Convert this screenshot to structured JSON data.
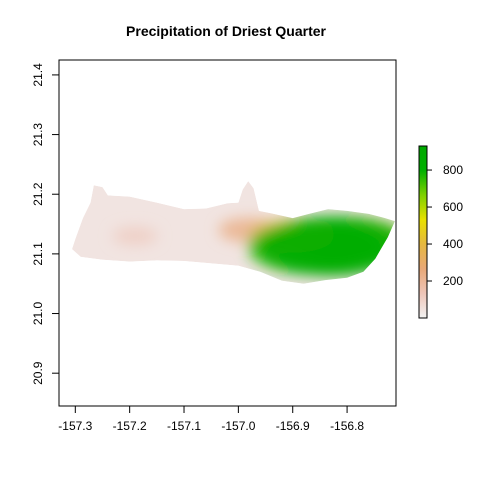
{
  "chart_data": {
    "type": "heatmap",
    "title": "Precipitation of Driest Quarter",
    "xlabel": "",
    "ylabel": "",
    "xlim": [
      -157.33,
      -156.71
    ],
    "ylim": [
      20.845,
      21.425
    ],
    "x_ticks": [
      -157.3,
      -157.2,
      -157.1,
      -157.0,
      -156.9,
      -156.8
    ],
    "x_tick_labels": [
      "-157.3",
      "-157.2",
      "-157.1",
      "-157.0",
      "-156.9",
      "-156.8"
    ],
    "y_ticks": [
      20.9,
      21.0,
      21.1,
      21.2,
      21.3,
      21.4
    ],
    "y_tick_labels": [
      "20.9",
      "21.0",
      "21.1",
      "21.2",
      "21.3",
      "21.4"
    ],
    "grid": false,
    "legend": {
      "placement": "right",
      "range": [
        0,
        930
      ],
      "ticks": [
        200,
        400,
        600,
        800
      ],
      "tick_labels": [
        "200",
        "400",
        "600",
        "800"
      ],
      "colors": [
        "#f2f2f2",
        "#eec5b8",
        "#e8a878",
        "#e6b840",
        "#e8e000",
        "#7ed000",
        "#00b000",
        "#00a800"
      ]
    },
    "island_outline": [
      [
        -157.306,
        21.108
      ],
      [
        -157.3,
        21.125
      ],
      [
        -157.286,
        21.16
      ],
      [
        -157.272,
        21.186
      ],
      [
        -157.266,
        21.215
      ],
      [
        -157.25,
        21.212
      ],
      [
        -157.24,
        21.198
      ],
      [
        -157.2,
        21.196
      ],
      [
        -157.15,
        21.186
      ],
      [
        -157.1,
        21.175
      ],
      [
        -157.06,
        21.176
      ],
      [
        -157.02,
        21.185
      ],
      [
        -157.0,
        21.186
      ],
      [
        -156.992,
        21.208
      ],
      [
        -156.982,
        21.222
      ],
      [
        -156.972,
        21.21
      ],
      [
        -156.962,
        21.172
      ],
      [
        -156.94,
        21.168
      ],
      [
        -156.9,
        21.16
      ],
      [
        -156.87,
        21.167
      ],
      [
        -156.835,
        21.175
      ],
      [
        -156.8,
        21.172
      ],
      [
        -156.76,
        21.167
      ],
      [
        -156.73,
        21.16
      ],
      [
        -156.712,
        21.155
      ],
      [
        -156.725,
        21.128
      ],
      [
        -156.748,
        21.092
      ],
      [
        -156.77,
        21.07
      ],
      [
        -156.8,
        21.06
      ],
      [
        -156.84,
        21.056
      ],
      [
        -156.88,
        21.05
      ],
      [
        -156.92,
        21.055
      ],
      [
        -156.96,
        21.07
      ],
      [
        -157.0,
        21.08
      ],
      [
        -157.05,
        21.084
      ],
      [
        -157.1,
        21.088
      ],
      [
        -157.15,
        21.089
      ],
      [
        -157.2,
        21.087
      ],
      [
        -157.25,
        21.09
      ],
      [
        -157.29,
        21.095
      ]
    ],
    "precip_hotspots": [
      {
        "lon": -156.825,
        "lat": 21.113,
        "value": 880
      },
      {
        "lon": -156.86,
        "lat": 21.11,
        "value": 760
      },
      {
        "lon": -156.8,
        "lat": 21.12,
        "value": 700
      },
      {
        "lon": -156.9,
        "lat": 21.13,
        "value": 400
      },
      {
        "lon": -156.98,
        "lat": 21.14,
        "value": 230
      },
      {
        "lon": -157.19,
        "lat": 21.13,
        "value": 110
      }
    ],
    "background_value": 40
  }
}
